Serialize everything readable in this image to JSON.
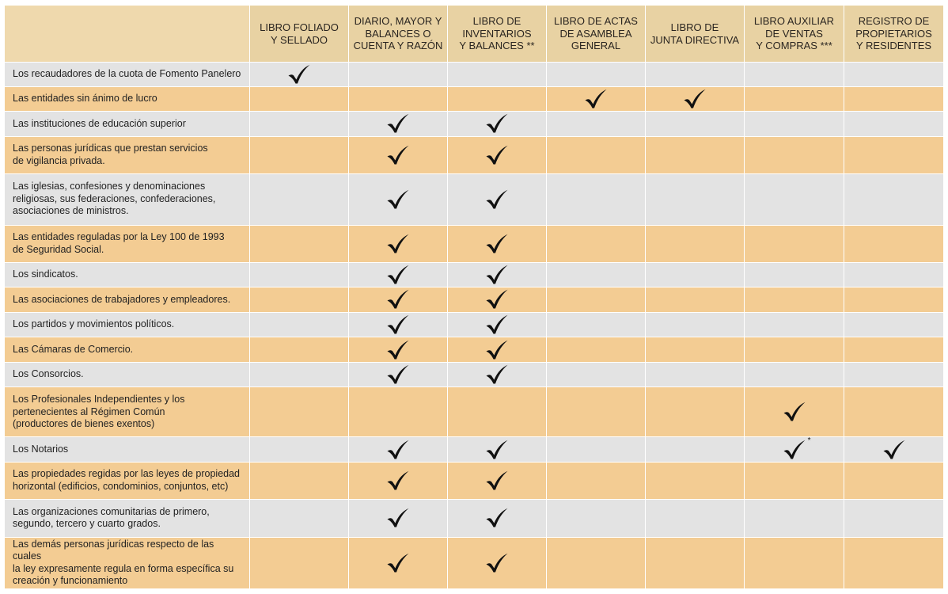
{
  "headers": [
    {
      "key": "libro_foliado",
      "label": "LIBRO FOLIADO\nY SELLADO"
    },
    {
      "key": "diario_mayor",
      "label": "DIARIO, MAYOR Y\nBALANCES O\nCUENTA Y RAZÓN"
    },
    {
      "key": "inventarios",
      "label": "LIBRO DE\nINVENTARIOS\nY BALANCES **"
    },
    {
      "key": "actas_asamblea",
      "label": "LIBRO DE ACTAS\nDE ASAMBLEA\nGENERAL"
    },
    {
      "key": "junta_directiva",
      "label": "LIBRO DE\nJUNTA DIRECTIVA"
    },
    {
      "key": "auxiliar_ventas",
      "label": "LIBRO AUXILIAR\nDE VENTAS\nY COMPRAS ***"
    },
    {
      "key": "propietarios",
      "label": "REGISTRO DE\nPROPIETARIOS\nY RESIDENTES"
    }
  ],
  "check_icon": "checkmark-icon",
  "rows": [
    {
      "label": "Los recaudadores de la cuota de Fomento Panelero",
      "checks": [
        "check",
        "",
        "",
        "",
        "",
        "",
        ""
      ]
    },
    {
      "label": "Las entidades sin  ánimo de lucro",
      "checks": [
        "",
        "",
        "",
        "check",
        "check",
        "",
        ""
      ]
    },
    {
      "label": "Las instituciones de educación superior",
      "checks": [
        "",
        "check",
        "check",
        "",
        "",
        "",
        ""
      ]
    },
    {
      "label": "Las personas jurídicas que prestan servicios\nde vigilancia privada.",
      "checks": [
        "",
        "check",
        "check",
        "",
        "",
        "",
        ""
      ]
    },
    {
      "label": "Las iglesias, confesiones y denominaciones\nreligiosas, sus federaciones, confederaciones,\nasociaciones de ministros.",
      "checks": [
        "",
        "check",
        "check",
        "",
        "",
        "",
        ""
      ]
    },
    {
      "label": "Las entidades reguladas por la Ley 100 de 1993\nde Seguridad Social.",
      "checks": [
        "",
        "check",
        "check",
        "",
        "",
        "",
        ""
      ]
    },
    {
      "label": "Los sindicatos.",
      "checks": [
        "",
        "check",
        "check",
        "",
        "",
        "",
        ""
      ]
    },
    {
      "label": "Las asociaciones de trabajadores y empleadores.",
      "checks": [
        "",
        "check",
        "check",
        "",
        "",
        "",
        ""
      ]
    },
    {
      "label": "Los partidos y movimientos políticos.",
      "checks": [
        "",
        "check",
        "check",
        "",
        "",
        "",
        ""
      ]
    },
    {
      "label": "Las Cámaras de Comercio.",
      "checks": [
        "",
        "check",
        "check",
        "",
        "",
        "",
        ""
      ]
    },
    {
      "label": "Los Consorcios.",
      "checks": [
        "",
        "check",
        "check",
        "",
        "",
        "",
        ""
      ]
    },
    {
      "label": "Los Profesionales Independientes y los\npertenecientes al Régimen Común\n(productores de bienes exentos)",
      "checks": [
        "",
        "",
        "",
        "",
        "",
        "check",
        ""
      ]
    },
    {
      "label": "Los Notarios",
      "checks": [
        "",
        "check",
        "check",
        "",
        "",
        "check*",
        "check"
      ]
    },
    {
      "label": "Las propiedades regidas por las leyes de propiedad\nhorizontal (edificios, condominios, conjuntos, etc)",
      "checks": [
        "",
        "check",
        "check",
        "",
        "",
        "",
        ""
      ]
    },
    {
      "label": "Las organizaciones comunitarias de primero,\nsegundo, tercero y cuarto grados.",
      "checks": [
        "",
        "check",
        "check",
        "",
        "",
        "",
        ""
      ]
    },
    {
      "label": "Las demás personas jurídicas respecto de las cuales\nla ley expresamente regula en forma específica su\ncreación y funcionamiento",
      "checks": [
        "",
        "check",
        "check",
        "",
        "",
        "",
        ""
      ]
    }
  ]
}
